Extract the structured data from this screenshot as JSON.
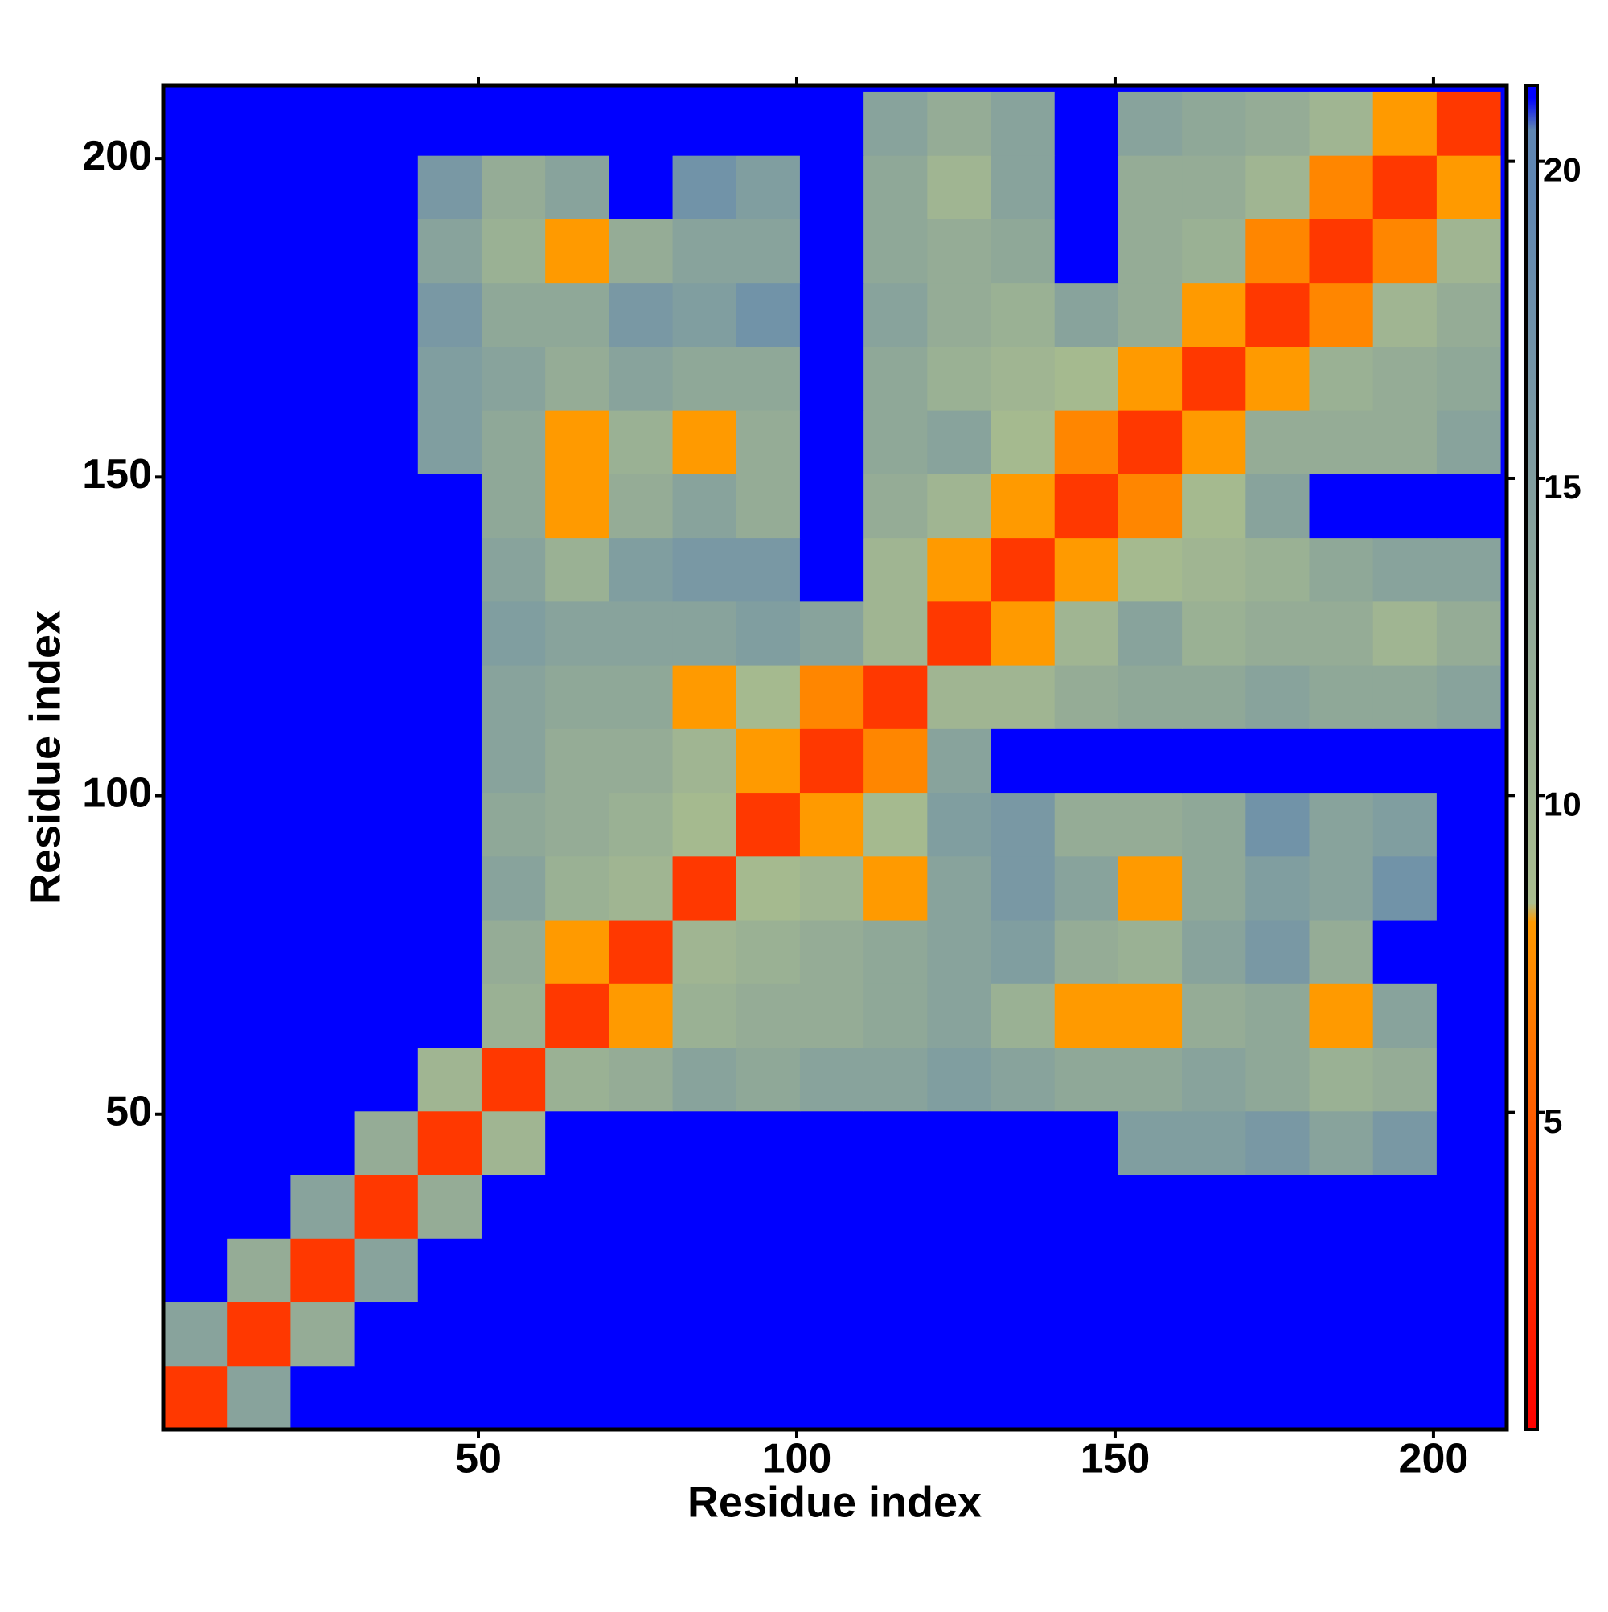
{
  "chart_data": {
    "type": "heatmap",
    "xlabel": "Residue index",
    "ylabel": "Residue index",
    "xlim": [
      0.5,
      211.5
    ],
    "ylim": [
      0.5,
      211.5
    ],
    "xticks": [
      50,
      100,
      150,
      200
    ],
    "yticks": [
      50,
      100,
      150,
      200
    ],
    "x_bins": [
      0.5,
      10.5,
      20.5,
      30.5,
      40.5,
      50.5,
      60.5,
      70.5,
      80.5,
      90.5,
      100.5,
      110.5,
      120.5,
      130.5,
      140.5,
      150.5,
      160.5,
      170.5,
      180.5,
      190.5,
      200.5,
      210.5
    ],
    "y_bins": [
      0.5,
      10.5,
      20.5,
      30.5,
      40.5,
      50.5,
      60.5,
      70.5,
      80.5,
      90.5,
      100.5,
      110.5,
      120.5,
      130.5,
      140.5,
      150.5,
      160.5,
      170.5,
      180.5,
      190.5,
      200.5,
      210.5
    ],
    "z": [
      [
        3,
        14,
        21,
        21,
        21,
        21,
        21,
        21,
        21,
        21,
        21,
        21,
        21,
        21,
        21,
        21,
        21,
        21,
        21,
        21,
        21
      ],
      [
        14,
        3,
        12,
        21,
        21,
        21,
        21,
        21,
        21,
        21,
        21,
        21,
        21,
        21,
        21,
        21,
        21,
        21,
        21,
        21,
        21
      ],
      [
        21,
        12,
        3,
        14,
        21,
        21,
        21,
        21,
        21,
        21,
        21,
        21,
        21,
        21,
        21,
        21,
        21,
        21,
        21,
        21,
        21
      ],
      [
        21,
        21,
        14,
        3,
        12,
        21,
        21,
        21,
        21,
        21,
        21,
        21,
        21,
        21,
        21,
        21,
        21,
        21,
        21,
        21,
        21
      ],
      [
        21,
        21,
        21,
        12,
        3,
        10,
        21,
        21,
        21,
        21,
        21,
        21,
        21,
        21,
        21,
        15,
        15,
        16,
        14,
        16,
        21
      ],
      [
        21,
        21,
        21,
        21,
        10,
        3,
        11,
        12,
        14,
        13,
        14,
        14,
        15,
        14,
        13,
        13,
        14,
        13,
        11,
        12,
        21
      ],
      [
        21,
        21,
        21,
        21,
        21,
        11,
        3,
        8,
        11,
        12,
        12,
        13,
        14,
        11,
        8,
        8,
        12,
        13,
        8,
        14,
        21
      ],
      [
        21,
        21,
        21,
        21,
        21,
        12,
        8,
        3,
        10,
        11,
        12,
        13,
        14,
        15,
        12,
        11,
        14,
        16,
        12,
        21,
        21
      ],
      [
        21,
        21,
        21,
        21,
        21,
        14,
        11,
        10,
        3,
        9,
        10,
        8,
        14,
        16,
        14,
        8,
        13,
        15,
        14,
        17,
        21
      ],
      [
        21,
        21,
        21,
        21,
        21,
        13,
        12,
        11,
        9,
        3,
        8,
        9,
        15,
        16,
        12,
        12,
        13,
        17,
        14,
        15,
        21
      ],
      [
        21,
        21,
        21,
        21,
        21,
        14,
        12,
        12,
        10,
        8,
        3,
        7,
        14,
        21,
        21,
        21,
        21,
        21,
        21,
        21,
        21
      ],
      [
        21,
        21,
        21,
        21,
        21,
        14,
        13,
        13,
        8,
        9,
        7,
        3,
        10,
        10,
        12,
        13,
        13,
        14,
        13,
        13,
        14
      ],
      [
        21,
        21,
        21,
        21,
        21,
        15,
        14,
        14,
        14,
        15,
        14,
        10,
        3,
        8,
        10,
        14,
        11,
        12,
        12,
        10,
        12
      ],
      [
        21,
        21,
        21,
        21,
        21,
        14,
        11,
        15,
        16,
        16,
        21,
        10,
        8,
        3,
        8,
        9,
        10,
        11,
        13,
        14,
        14
      ],
      [
        21,
        21,
        21,
        21,
        21,
        13,
        8,
        12,
        14,
        12,
        21,
        12,
        10,
        8,
        3,
        7,
        9,
        14,
        21,
        21,
        21
      ],
      [
        21,
        21,
        21,
        21,
        15,
        13,
        8,
        11,
        8,
        12,
        21,
        13,
        14,
        9,
        7,
        3,
        8,
        12,
        12,
        12,
        14
      ],
      [
        21,
        21,
        21,
        21,
        15,
        14,
        12,
        14,
        13,
        13,
        21,
        13,
        11,
        10,
        9,
        8,
        3,
        8,
        11,
        12,
        13
      ],
      [
        21,
        21,
        21,
        21,
        16,
        13,
        13,
        16,
        15,
        17,
        21,
        14,
        12,
        11,
        14,
        12,
        8,
        3,
        7,
        10,
        12
      ],
      [
        21,
        21,
        21,
        21,
        14,
        11,
        8,
        12,
        14,
        14,
        21,
        13,
        12,
        13,
        21,
        12,
        11,
        7,
        3,
        7,
        10
      ],
      [
        21,
        21,
        21,
        21,
        16,
        12,
        14,
        21,
        17,
        15,
        21,
        13,
        10,
        14,
        21,
        12,
        12,
        10,
        7,
        3,
        8
      ],
      [
        21,
        21,
        21,
        21,
        21,
        21,
        21,
        21,
        21,
        21,
        21,
        14,
        12,
        14,
        21,
        14,
        13,
        12,
        10,
        8,
        3
      ]
    ],
    "colorbar": {
      "lim": [
        0,
        21.2
      ],
      "ticks": [
        5,
        10,
        15,
        20
      ]
    },
    "colorscale": [
      [
        0,
        "#ff0000"
      ],
      [
        4,
        "#ff4a00"
      ],
      [
        8,
        "#ff9a00"
      ],
      [
        8.3,
        "#a9bd8e"
      ],
      [
        13,
        "#8fa898"
      ],
      [
        19.5,
        "#5f86b2"
      ],
      [
        20.5,
        "#5f86b2"
      ],
      [
        21,
        "#0000ff"
      ]
    ]
  }
}
